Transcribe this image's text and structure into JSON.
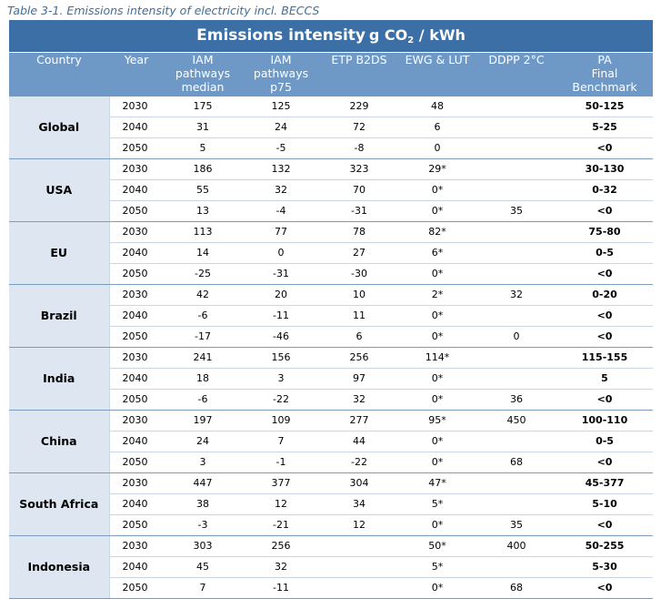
{
  "caption": "Table 3-1. Emissions intensity of electricity incl. BECCS",
  "title": {
    "bold": "Emissions intensity",
    "unit_pre": "g CO",
    "unit_sub": "2",
    "unit_post": " / kWh"
  },
  "headers": {
    "country": "Country",
    "year": "Year",
    "iam_median": [
      "IAM",
      "pathways",
      "median"
    ],
    "iam_p75": [
      "IAM",
      "pathways",
      "p75"
    ],
    "etp": "ETP B2DS",
    "ewg": "EWG & LUT",
    "ddpp": "DDPP 2°C",
    "pa": [
      "PA",
      "Final",
      "Benchmark"
    ]
  },
  "groups": [
    {
      "country": "Global",
      "rows": [
        {
          "year": "2030",
          "iam_median": "175",
          "iam_p75": "125",
          "etp": "229",
          "ewg": "48",
          "ddpp": "",
          "pa": "50-125"
        },
        {
          "year": "2040",
          "iam_median": "31",
          "iam_p75": "24",
          "etp": "72",
          "ewg": "6",
          "ddpp": "",
          "pa": "5-25"
        },
        {
          "year": "2050",
          "iam_median": "5",
          "iam_p75": "-5",
          "etp": "-8",
          "ewg": "0",
          "ddpp": "",
          "pa": "<0"
        }
      ]
    },
    {
      "country": "USA",
      "rows": [
        {
          "year": "2030",
          "iam_median": "186",
          "iam_p75": "132",
          "etp": "323",
          "ewg": "29*",
          "ddpp": "",
          "pa": "30-130"
        },
        {
          "year": "2040",
          "iam_median": "55",
          "iam_p75": "32",
          "etp": "70",
          "ewg": "0*",
          "ddpp": "",
          "pa": "0-32"
        },
        {
          "year": "2050",
          "iam_median": "13",
          "iam_p75": "-4",
          "etp": "-31",
          "ewg": "0*",
          "ddpp": "35",
          "pa": "<0"
        }
      ]
    },
    {
      "country": "EU",
      "rows": [
        {
          "year": "2030",
          "iam_median": "113",
          "iam_p75": "77",
          "etp": "78",
          "ewg": "82*",
          "ddpp": "",
          "pa": "75-80"
        },
        {
          "year": "2040",
          "iam_median": "14",
          "iam_p75": "0",
          "etp": "27",
          "ewg": "6*",
          "ddpp": "",
          "pa": "0-5"
        },
        {
          "year": "2050",
          "iam_median": "-25",
          "iam_p75": "-31",
          "etp": "-30",
          "ewg": "0*",
          "ddpp": "",
          "pa": "<0"
        }
      ]
    },
    {
      "country": "Brazil",
      "rows": [
        {
          "year": "2030",
          "iam_median": "42",
          "iam_p75": "20",
          "etp": "10",
          "ewg": "2*",
          "ddpp": "32",
          "pa": "0-20"
        },
        {
          "year": "2040",
          "iam_median": "-6",
          "iam_p75": "-11",
          "etp": "11",
          "ewg": "0*",
          "ddpp": "",
          "pa": "<0"
        },
        {
          "year": "2050",
          "iam_median": "-17",
          "iam_p75": "-46",
          "etp": "6",
          "ewg": "0*",
          "ddpp": "0",
          "pa": "<0"
        }
      ]
    },
    {
      "country": "India",
      "rows": [
        {
          "year": "2030",
          "iam_median": "241",
          "iam_p75": "156",
          "etp": "256",
          "ewg": "114*",
          "ddpp": "",
          "pa": "115-155"
        },
        {
          "year": "2040",
          "iam_median": "18",
          "iam_p75": "3",
          "etp": "97",
          "ewg": "0*",
          "ddpp": "",
          "pa": "5"
        },
        {
          "year": "2050",
          "iam_median": "-6",
          "iam_p75": "-22",
          "etp": "32",
          "ewg": "0*",
          "ddpp": "36",
          "pa": "<0"
        }
      ]
    },
    {
      "country": "China",
      "rows": [
        {
          "year": "2030",
          "iam_median": "197",
          "iam_p75": "109",
          "etp": "277",
          "ewg": "95*",
          "ddpp": "450",
          "pa": "100-110"
        },
        {
          "year": "2040",
          "iam_median": "24",
          "iam_p75": "7",
          "etp": "44",
          "ewg": "0*",
          "ddpp": "",
          "pa": "0-5"
        },
        {
          "year": "2050",
          "iam_median": "3",
          "iam_p75": "-1",
          "etp": "-22",
          "ewg": "0*",
          "ddpp": "68",
          "pa": "<0"
        }
      ]
    },
    {
      "country": "South Africa",
      "rows": [
        {
          "year": "2030",
          "iam_median": "447",
          "iam_p75": "377",
          "etp": "304",
          "ewg": "47*",
          "ddpp": "",
          "pa": "45-377"
        },
        {
          "year": "2040",
          "iam_median": "38",
          "iam_p75": "12",
          "etp": "34",
          "ewg": "5*",
          "ddpp": "",
          "pa": "5-10"
        },
        {
          "year": "2050",
          "iam_median": "-3",
          "iam_p75": "-21",
          "etp": "12",
          "ewg": "0*",
          "ddpp": "35",
          "pa": "<0"
        }
      ]
    },
    {
      "country": "Indonesia",
      "rows": [
        {
          "year": "2030",
          "iam_median": "303",
          "iam_p75": "256",
          "etp": "",
          "ewg": "50*",
          "ddpp": "400",
          "pa": "50-255"
        },
        {
          "year": "2040",
          "iam_median": "45",
          "iam_p75": "32",
          "etp": "",
          "ewg": "5*",
          "ddpp": "",
          "pa": "5-30"
        },
        {
          "year": "2050",
          "iam_median": "7",
          "iam_p75": "-11",
          "etp": "",
          "ewg": "0*",
          "ddpp": "68",
          "pa": "<0"
        }
      ]
    }
  ]
}
